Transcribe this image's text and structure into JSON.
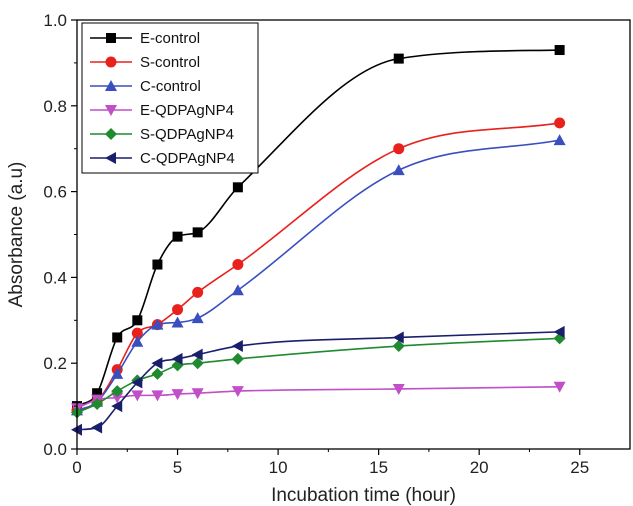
{
  "chart_data": {
    "type": "line",
    "title": "",
    "xlabel": "Incubation time (hour)",
    "ylabel": "Absorbance (a.u)",
    "xlim": [
      0,
      27.5
    ],
    "ylim": [
      0,
      1.0
    ],
    "x_ticks": [
      0,
      5,
      10,
      15,
      20,
      25
    ],
    "y_ticks": [
      0.0,
      0.2,
      0.4,
      0.6,
      0.8,
      1.0
    ],
    "x_tick_labels": [
      "0",
      "5",
      "10",
      "15",
      "20",
      "25"
    ],
    "y_tick_labels": [
      "0.0",
      "0.2",
      "0.4",
      "0.6",
      "0.8",
      "1.0"
    ],
    "grid": false,
    "legend_position": "top-left",
    "series": [
      {
        "name": "E-control",
        "color": "#000000",
        "marker": "square",
        "x": [
          0,
          1,
          2,
          3,
          4,
          5,
          6,
          8,
          16,
          24
        ],
        "y": [
          0.1,
          0.13,
          0.26,
          0.3,
          0.43,
          0.495,
          0.505,
          0.61,
          0.91,
          0.93
        ]
      },
      {
        "name": "S-control",
        "color": "#e8211d",
        "marker": "circle",
        "x": [
          0,
          1,
          2,
          3,
          4,
          5,
          6,
          8,
          16,
          24
        ],
        "y": [
          0.09,
          0.11,
          0.185,
          0.27,
          0.29,
          0.325,
          0.365,
          0.43,
          0.7,
          0.76
        ]
      },
      {
        "name": "C-control",
        "color": "#3a4fbf",
        "marker": "triangle-up",
        "x": [
          0,
          1,
          2,
          3,
          4,
          5,
          6,
          8,
          16,
          24
        ],
        "y": [
          0.09,
          0.11,
          0.175,
          0.25,
          0.29,
          0.295,
          0.305,
          0.37,
          0.65,
          0.72
        ]
      },
      {
        "name": "E-QDPAgNP4",
        "color": "#c04fc8",
        "marker": "triangle-down",
        "x": [
          0,
          1,
          2,
          3,
          4,
          5,
          6,
          8,
          16,
          24
        ],
        "y": [
          0.095,
          0.115,
          0.12,
          0.125,
          0.125,
          0.128,
          0.13,
          0.135,
          0.14,
          0.145
        ]
      },
      {
        "name": "S-QDPAgNP4",
        "color": "#1f8a2e",
        "marker": "diamond",
        "x": [
          0,
          1,
          2,
          3,
          4,
          5,
          6,
          8,
          16,
          24
        ],
        "y": [
          0.085,
          0.105,
          0.135,
          0.16,
          0.175,
          0.195,
          0.2,
          0.21,
          0.24,
          0.258
        ]
      },
      {
        "name": "C-QDPAgNP4",
        "color": "#1a1f6b",
        "marker": "triangle-left",
        "x": [
          0,
          1,
          2,
          3,
          4,
          5,
          6,
          8,
          16,
          24
        ],
        "y": [
          0.045,
          0.05,
          0.1,
          0.155,
          0.2,
          0.21,
          0.22,
          0.24,
          0.26,
          0.273
        ]
      }
    ]
  }
}
